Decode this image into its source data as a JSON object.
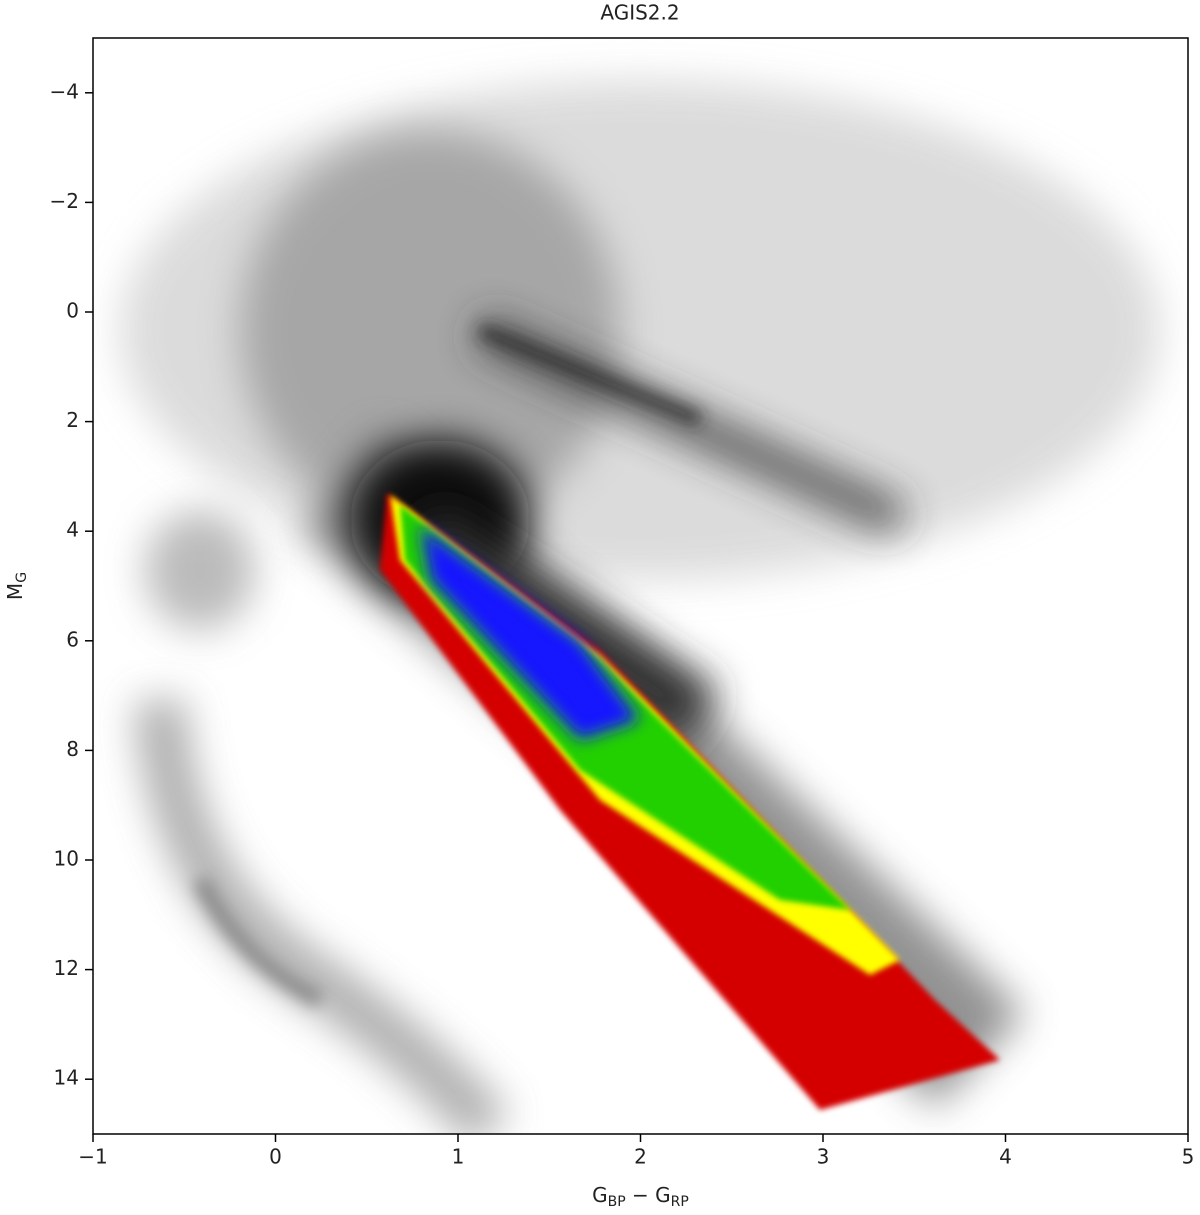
{
  "chart_data": {
    "type": "density",
    "title": "AGIS2.2",
    "xlabel": [
      "G",
      "BP",
      " − G",
      "RP"
    ],
    "ylabel": [
      "M",
      "G"
    ],
    "xlim": [
      -1,
      5
    ],
    "xticks": [
      {
        "value": -1,
        "label": "−1"
      },
      0,
      1,
      2,
      3,
      4,
      5
    ],
    "ylim": [
      -5,
      15
    ],
    "y_inverted": true,
    "yticks": [
      {
        "value": -4,
        "label": "−4"
      },
      {
        "value": -2,
        "label": "−2"
      },
      0,
      2,
      4,
      6,
      8,
      10,
      12,
      14
    ]
  }
}
